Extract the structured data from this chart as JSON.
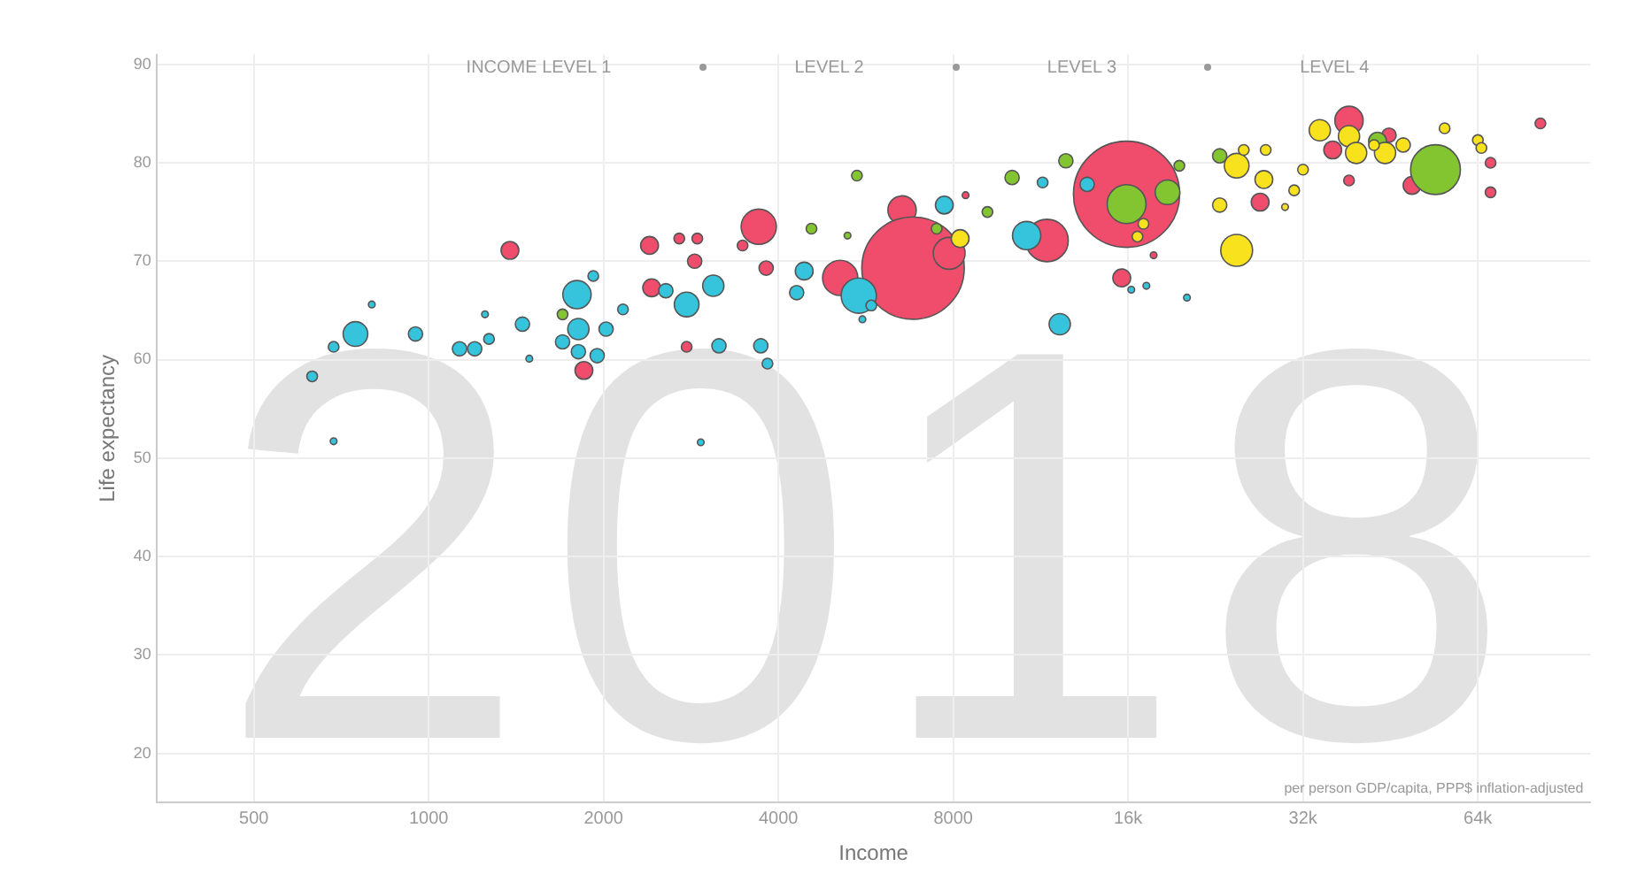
{
  "chart_data": {
    "type": "bubble",
    "xlabel": "Income",
    "ylabel": "Life expectancy",
    "annotations": [
      "INCOME LEVEL 1",
      "LEVEL 2",
      "LEVEL 3",
      "LEVEL 4",
      "2018",
      "per person GDP/capita, PPP$ inflation-adjusted"
    ],
    "log": "x",
    "grid": true,
    "legend": false,
    "marker": "circle",
    "xlim": [
      340,
      100000
    ],
    "xticks": [
      500,
      1000,
      2000,
      4000,
      8000,
      {
        "value": 16000,
        "label": "16k"
      },
      {
        "value": 32000,
        "label": "32k"
      },
      {
        "value": 64000,
        "label": "64k"
      }
    ],
    "ylim": [
      15,
      91
    ],
    "yticks": [
      20,
      30,
      40,
      50,
      60,
      70,
      80,
      90
    ],
    "series": [
      {
        "color": "#ef4d6b",
        "x": [
          1380,
          2400,
          2700,
          2900,
          2870,
          2420,
          1850,
          2780,
          3470,
          3810,
          3700,
          6530,
          6820,
          5110,
          7870,
          11600,
          15900,
          15600,
          17700,
          8400,
          38400,
          36000,
          45000,
          27000,
          49300,
          82000,
          67300,
          67300,
          38400
        ],
        "values": [
          71.1,
          71.6,
          72.3,
          72.3,
          70.0,
          67.3,
          58.9,
          61.3,
          71.6,
          69.3,
          73.5,
          75.2,
          69.3,
          68.3,
          70.8,
          72.1,
          76.8,
          68.3,
          70.6,
          76.7,
          84.3,
          81.3,
          82.8,
          76.0,
          77.7,
          84.0,
          80.0,
          77.0,
          78.2
        ],
        "sizes": [
          0.028,
          0.028,
          0.01,
          0.01,
          0.018,
          0.028,
          0.028,
          0.01,
          0.01,
          0.018,
          0.11,
          0.071,
          0.93,
          0.11,
          0.09,
          0.16,
          1,
          0.028,
          0.004,
          0.004,
          0.071,
          0.028,
          0.018,
          0.028,
          0.028,
          0.01,
          0.01,
          0.01,
          0.01
        ]
      },
      {
        "color": "#82c530",
        "x": [
          1700,
          5460,
          10100,
          12500,
          4560,
          5260,
          9160,
          7490,
          15900,
          18700,
          54100,
          23000,
          19600,
          43000
        ],
        "values": [
          64.6,
          78.7,
          78.5,
          80.2,
          73.3,
          72.6,
          75.0,
          73.3,
          75.8,
          77.0,
          79.3,
          80.7,
          79.7,
          82.2
        ],
        "sizes": [
          0.01,
          0.01,
          0.018,
          0.018,
          0.01,
          0.004,
          0.01,
          0.01,
          0.134,
          0.054,
          0.22,
          0.018,
          0.01,
          0.028
        ]
      },
      {
        "color": "#35c4dc",
        "x": [
          748,
          686,
          630,
          686,
          798,
          949,
          1130,
          1200,
          1270,
          1250,
          1450,
          1800,
          1920,
          1810,
          1700,
          1810,
          1950,
          2020,
          2160,
          1490,
          2560,
          2780,
          3090,
          3160,
          3730,
          3830,
          4300,
          4430,
          5500,
          5780,
          5580,
          7720,
          10700,
          12200,
          11400,
          13600,
          16200,
          17200,
          20200,
          2940
        ],
        "values": [
          62.6,
          61.3,
          58.3,
          51.7,
          65.6,
          62.6,
          61.1,
          61.1,
          62.1,
          64.6,
          63.6,
          66.6,
          68.5,
          63.1,
          61.8,
          60.8,
          60.4,
          63.1,
          65.1,
          60.1,
          67.0,
          65.6,
          67.5,
          61.4,
          61.4,
          59.6,
          66.8,
          69.0,
          66.5,
          65.5,
          64.1,
          75.7,
          72.6,
          63.6,
          78.0,
          77.8,
          67.1,
          67.5,
          66.3,
          51.6
        ],
        "sizes": [
          0.054,
          0.01,
          0.01,
          0.004,
          0.004,
          0.018,
          0.018,
          0.018,
          0.01,
          0.004,
          0.018,
          0.071,
          0.01,
          0.04,
          0.018,
          0.018,
          0.018,
          0.018,
          0.01,
          0.004,
          0.018,
          0.054,
          0.04,
          0.018,
          0.018,
          0.01,
          0.018,
          0.028,
          0.11,
          0.01,
          0.004,
          0.028,
          0.071,
          0.04,
          0.01,
          0.018,
          0.004,
          0.004,
          0.004,
          0.004
        ]
      },
      {
        "color": "#f8e21d",
        "x": [
          8220,
          34200,
          38400,
          39500,
          44300,
          47600,
          24600,
          27400,
          25300,
          27600,
          23000,
          24600,
          32000,
          30900,
          56100,
          64000,
          64900,
          17000,
          16600,
          29800,
          42400
        ],
        "values": [
          72.3,
          83.3,
          82.7,
          81.0,
          81.0,
          81.8,
          79.7,
          78.3,
          81.3,
          81.3,
          75.7,
          71.1,
          79.3,
          77.2,
          83.5,
          82.3,
          81.5,
          73.8,
          72.5,
          75.5,
          81.8
        ],
        "sizes": [
          0.028,
          0.04,
          0.04,
          0.04,
          0.04,
          0.018,
          0.054,
          0.028,
          0.01,
          0.01,
          0.018,
          0.09,
          0.01,
          0.01,
          0.01,
          0.01,
          0.01,
          0.01,
          0.01,
          0.004,
          0.01
        ]
      }
    ]
  }
}
